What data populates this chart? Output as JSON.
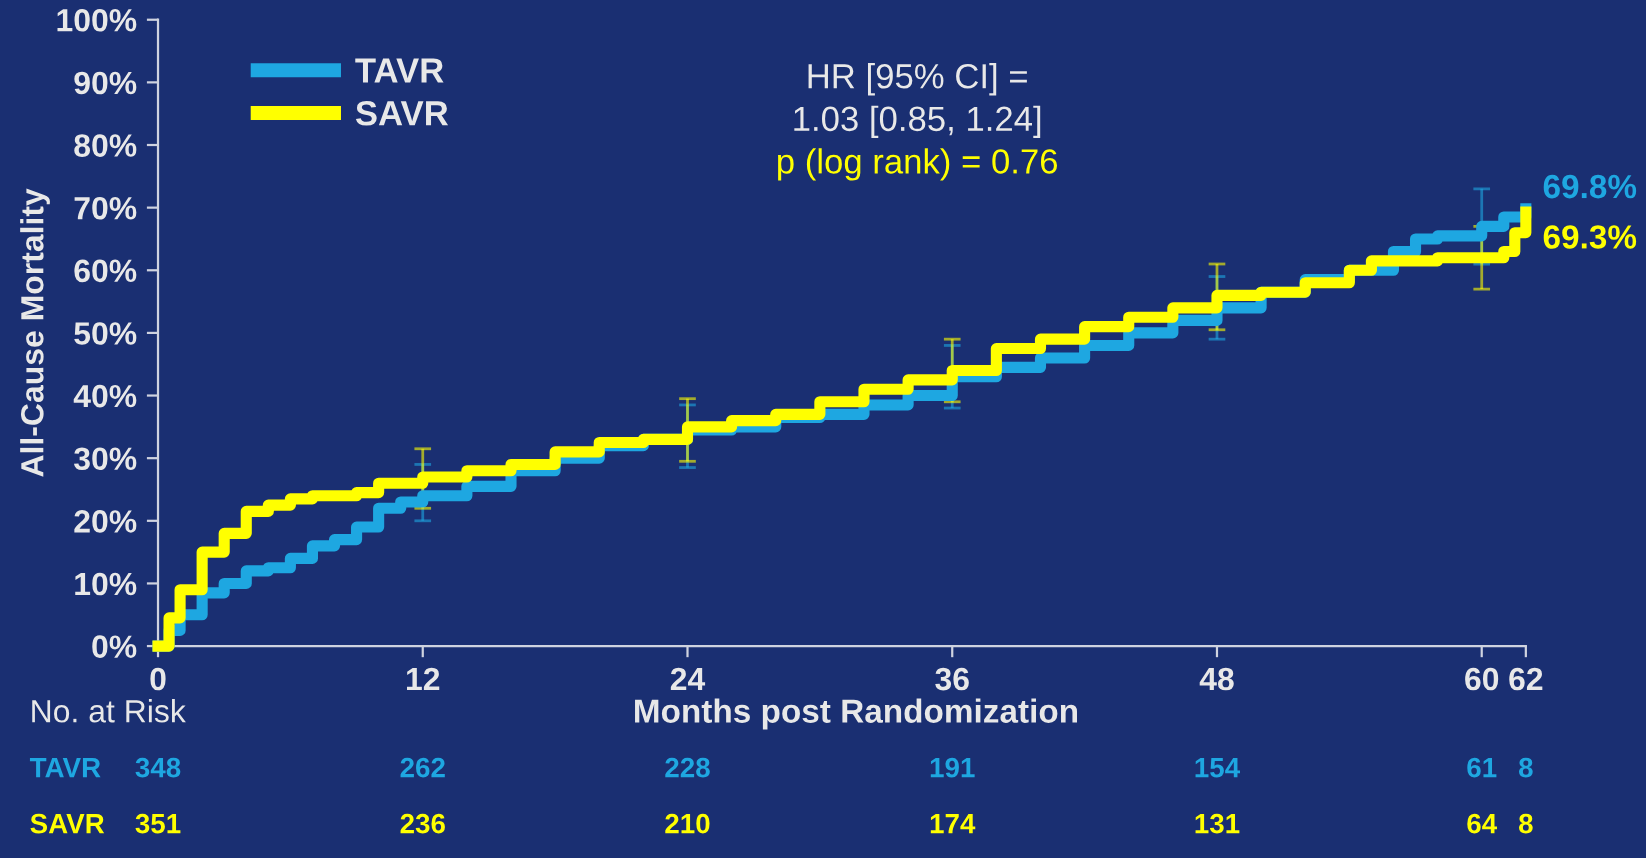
{
  "chart_data": {
    "type": "step",
    "ylabel": "All-Cause Mortality",
    "xlabel": "Months post Randomization",
    "xlim": [
      0,
      62
    ],
    "xticks": [
      0,
      12,
      24,
      36,
      48,
      60,
      62
    ],
    "ylim": [
      0,
      100
    ],
    "yticks": [
      {
        "value": 0,
        "label": "0%"
      },
      {
        "value": 10,
        "label": "10%"
      },
      {
        "value": 20,
        "label": "20%"
      },
      {
        "value": 30,
        "label": "30%"
      },
      {
        "value": 40,
        "label": "40%"
      },
      {
        "value": 50,
        "label": "50%"
      },
      {
        "value": 60,
        "label": "60%"
      },
      {
        "value": 70,
        "label": "70%"
      },
      {
        "value": 80,
        "label": "80%"
      },
      {
        "value": 90,
        "label": "90%"
      },
      {
        "value": 100,
        "label": "100%"
      }
    ],
    "grid": false,
    "legend": "top left",
    "series": [
      {
        "name": "TAVR",
        "color": "#1ea7e1",
        "x": [
          0,
          0.5,
          1,
          2,
          3,
          4,
          5,
          6,
          7,
          8,
          9,
          10,
          11,
          12,
          14,
          16,
          18,
          20,
          22,
          24,
          26,
          28,
          30,
          32,
          34,
          36,
          38,
          40,
          42,
          44,
          46,
          48,
          50,
          52,
          54,
          56,
          57,
          58,
          60,
          61,
          62
        ],
        "values": [
          0,
          2.5,
          5,
          8.5,
          10,
          12,
          12.5,
          14,
          16,
          17,
          19,
          22,
          23,
          24,
          25.5,
          28,
          30,
          32,
          33,
          34.5,
          35,
          36.5,
          37,
          38.5,
          40,
          43,
          44.5,
          46,
          48,
          50,
          52,
          54,
          56.5,
          58.5,
          60,
          63,
          65,
          65.5,
          67,
          68.5,
          69.8
        ],
        "errors": [
          null,
          null,
          null,
          null,
          null,
          null,
          null,
          null,
          null,
          null,
          null,
          null,
          null,
          [
            20,
            29
          ],
          null,
          null,
          null,
          null,
          null,
          [
            28.5,
            38.5
          ],
          null,
          null,
          null,
          null,
          null,
          [
            38,
            48
          ],
          null,
          null,
          null,
          null,
          null,
          [
            49,
            59
          ],
          null,
          null,
          null,
          null,
          null,
          null,
          [
            61,
            73
          ],
          null,
          null
        ]
      },
      {
        "name": "SAVR",
        "color": "#ffff00",
        "x": [
          0,
          0.5,
          1,
          2,
          3,
          4,
          5,
          6,
          7,
          8,
          9,
          10,
          12,
          14,
          16,
          18,
          20,
          22,
          24,
          26,
          28,
          30,
          32,
          34,
          36,
          38,
          40,
          42,
          44,
          46,
          48,
          50,
          52,
          54,
          55,
          58,
          60,
          61,
          61.5,
          62
        ],
        "values": [
          0,
          4.5,
          9,
          15,
          18,
          21.5,
          22.5,
          23.5,
          24,
          24,
          24.5,
          26,
          27,
          28,
          29,
          31,
          32.5,
          33,
          35,
          36,
          37,
          39,
          41,
          42.5,
          44,
          47.5,
          49,
          51,
          52.5,
          54,
          56,
          56.5,
          58,
          60,
          61.5,
          62,
          62,
          63,
          66,
          69.3
        ],
        "errors": [
          null,
          null,
          null,
          null,
          null,
          null,
          null,
          null,
          null,
          null,
          null,
          null,
          [
            22,
            31.5
          ],
          null,
          null,
          null,
          null,
          null,
          [
            29.5,
            39.5
          ],
          null,
          null,
          null,
          null,
          null,
          [
            39,
            49
          ],
          null,
          null,
          null,
          null,
          null,
          [
            50.5,
            61
          ],
          null,
          null,
          null,
          null,
          null,
          [
            57,
            67
          ],
          null,
          null,
          null
        ]
      }
    ],
    "annotations": [
      "HR [95% CI] =",
      "1.03 [0.85, 1.24]",
      "p (log rank) = 0.76",
      {
        "text": "69.8%",
        "x": 62,
        "y": 69.8
      },
      {
        "text": "69.3%",
        "x": 62,
        "y": 69.3
      },
      "No. at Risk",
      "TAVR",
      "348",
      "262",
      "228",
      "191",
      "154",
      "61",
      "8",
      "SAVR",
      "351",
      "236",
      "210",
      "174",
      "131",
      "64",
      "8"
    ]
  }
}
